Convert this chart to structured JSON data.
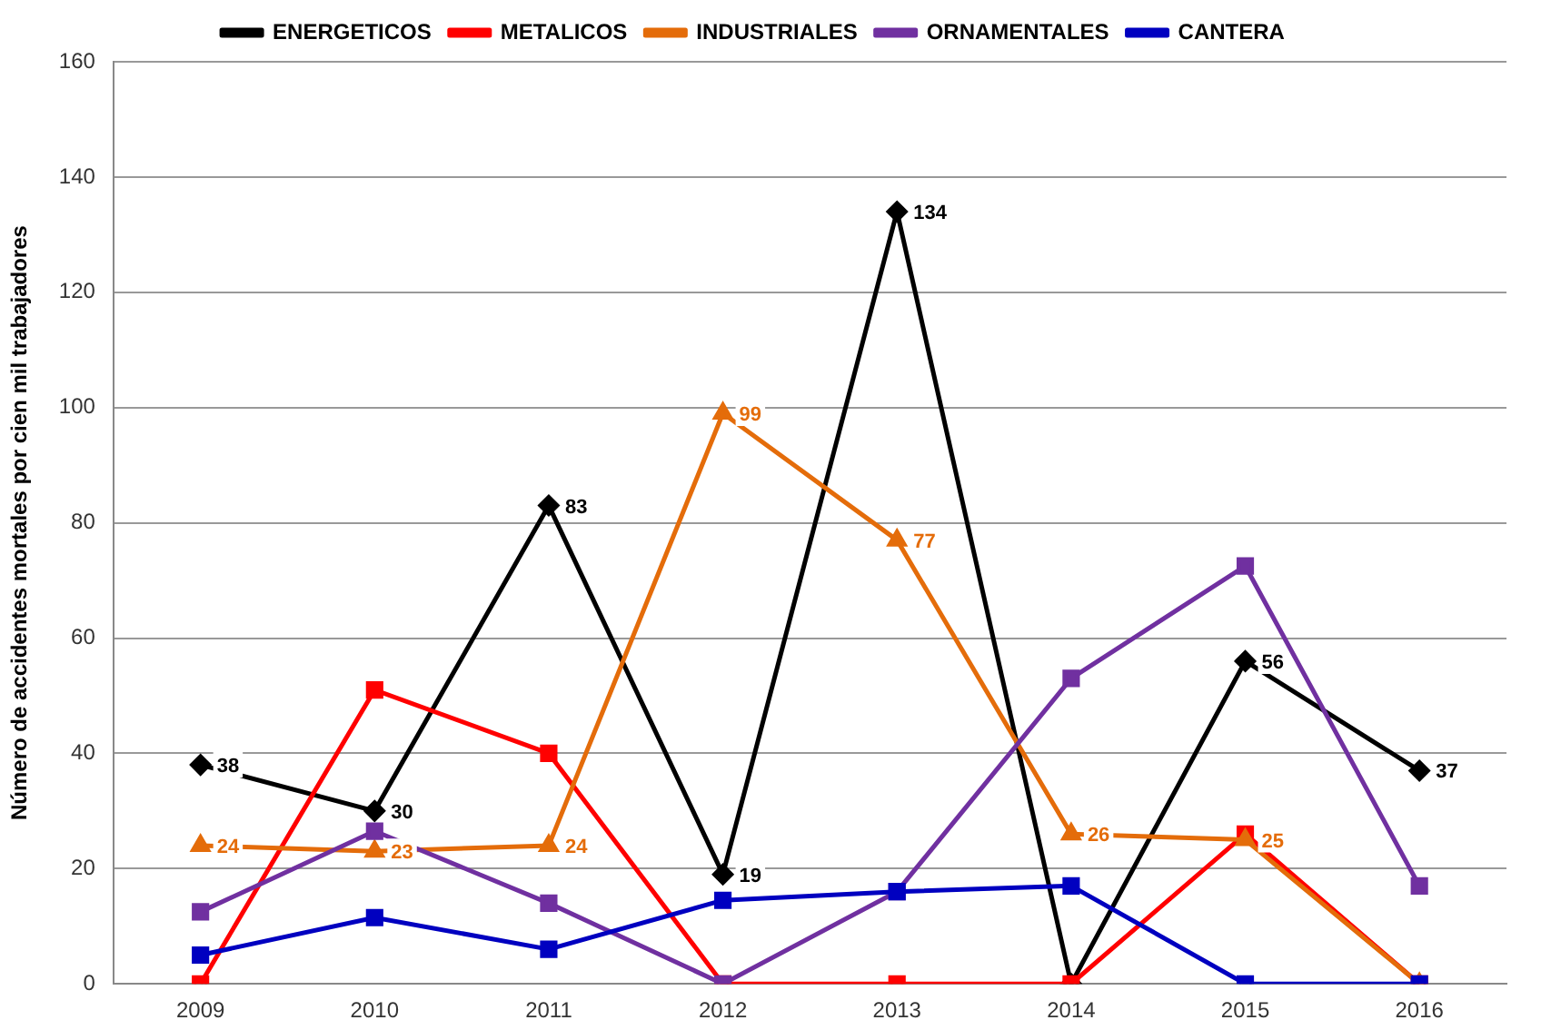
{
  "chart_data": {
    "type": "line",
    "ylabel": "Número de accidentes mortales por cien mil trabajadores",
    "categories": [
      "2009",
      "2010",
      "2011",
      "2012",
      "2013",
      "2014",
      "2015",
      "2016"
    ],
    "ylim": [
      0,
      160
    ],
    "yticks": [
      0,
      20,
      40,
      60,
      80,
      100,
      120,
      140,
      160
    ],
    "grid": "y",
    "legend": "top",
    "line_style": "solid",
    "series": [
      {
        "name": "ENERGETICOS",
        "color": "#000000",
        "marker": "diamond",
        "values": [
          38,
          30,
          83,
          19,
          134,
          0,
          56,
          37
        ],
        "value_labels": [
          "38",
          "30",
          "83",
          "19",
          "134",
          null,
          "56",
          "37"
        ]
      },
      {
        "name": "METALICOS",
        "color": "#ff0000",
        "marker": "square",
        "values": [
          0,
          51,
          40,
          0,
          0,
          0,
          26,
          0
        ]
      },
      {
        "name": "INDUSTRIALES",
        "color": "#e46c0a",
        "marker": "triangle",
        "values": [
          24,
          23,
          24,
          99,
          77,
          26,
          25,
          0
        ],
        "value_labels": [
          "24",
          "23",
          "24",
          "99",
          "77",
          "26",
          "25",
          null
        ]
      },
      {
        "name": "ORNAMENTALES",
        "color": "#7030a0",
        "marker": "square",
        "values": [
          12.5,
          26.5,
          14,
          0,
          16,
          53,
          72.5,
          17
        ]
      },
      {
        "name": "CANTERA",
        "color": "#0000c0",
        "marker": "square",
        "values": [
          5,
          11.5,
          6,
          14.5,
          16,
          17,
          0,
          0
        ]
      }
    ]
  }
}
